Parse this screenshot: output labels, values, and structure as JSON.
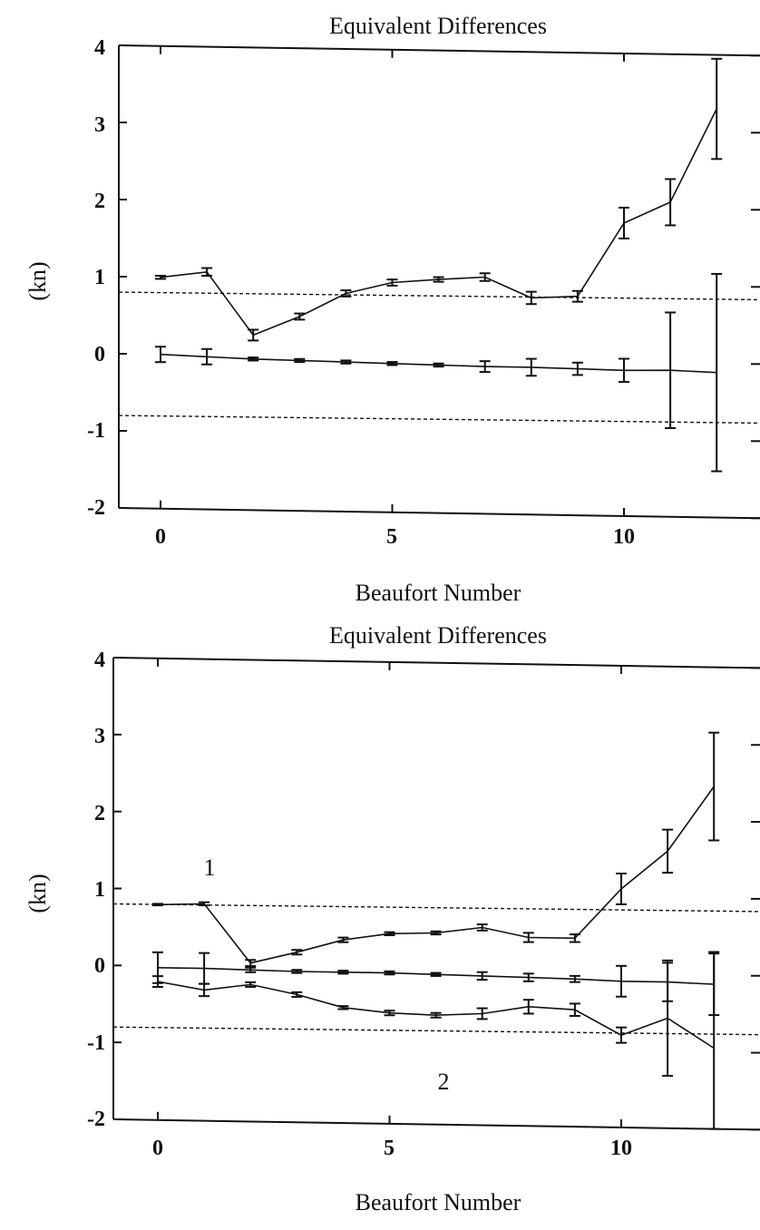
{
  "charts": [
    {
      "title": "Equivalent Differences",
      "xlabel": "Beaufort Number",
      "ylabel": "(kn)",
      "yticks": [
        "4",
        "3",
        "2",
        "1",
        "0",
        "-1",
        "-2"
      ],
      "xticks": [
        "0",
        "5",
        "10"
      ]
    },
    {
      "title": "Equivalent Differences",
      "xlabel": "Beaufort Number",
      "ylabel": "(kn)",
      "yticks": [
        "4",
        "3",
        "2",
        "1",
        "0",
        "-1",
        "-2"
      ],
      "xticks": [
        "0",
        "5",
        "10"
      ],
      "annotations": [
        "1",
        "2"
      ]
    }
  ],
  "chart_data": [
    {
      "type": "line",
      "title": "Equivalent Differences",
      "xlabel": "Beaufort Number",
      "ylabel": "(kn)",
      "xlim": [
        -1,
        13
      ],
      "ylim": [
        -2,
        4
      ],
      "x": [
        0,
        1,
        2,
        3,
        4,
        5,
        6,
        7,
        8,
        9,
        10,
        11,
        12
      ],
      "series": [
        {
          "values": [
            1.0,
            1.08,
            0.27,
            0.52,
            0.83,
            0.98,
            1.03,
            1.07,
            0.81,
            0.84,
            1.8,
            2.08,
            3.3
          ],
          "errors": [
            0.02,
            0.05,
            0.07,
            0.04,
            0.04,
            0.04,
            0.03,
            0.05,
            0.08,
            0.07,
            0.2,
            0.3,
            0.65
          ]
        },
        {
          "values": [
            0.0,
            -0.02,
            -0.04,
            -0.05,
            -0.06,
            -0.07,
            -0.08,
            -0.09,
            -0.09,
            -0.1,
            -0.11,
            -0.1,
            -0.12
          ],
          "errors": [
            0.1,
            0.1,
            0.02,
            0.02,
            0.02,
            0.02,
            0.02,
            0.07,
            0.11,
            0.08,
            0.15,
            0.75,
            1.28
          ]
        }
      ],
      "reference_lines": [
        {
          "style": "dashed",
          "from": [
            -1,
            0.8
          ],
          "to": [
            13,
            0.7
          ]
        },
        {
          "style": "dashed",
          "from": [
            -1,
            -0.8
          ],
          "to": [
            13,
            -0.9
          ]
        }
      ]
    },
    {
      "type": "line",
      "title": "Equivalent Differences",
      "xlabel": "Beaufort Number",
      "ylabel": "(kn)",
      "xlim": [
        -1,
        13
      ],
      "ylim": [
        -2,
        4
      ],
      "x": [
        0,
        1,
        2,
        3,
        4,
        5,
        6,
        7,
        8,
        9,
        10,
        11,
        12
      ],
      "series": [
        {
          "name": "1",
          "values": [
            0.8,
            0.82,
            0.06,
            0.21,
            0.38,
            0.47,
            0.49,
            0.57,
            0.45,
            0.45,
            1.1,
            1.6,
            2.45
          ],
          "errors": [
            0.01,
            0.02,
            0.04,
            0.03,
            0.03,
            0.02,
            0.02,
            0.04,
            0.06,
            0.05,
            0.2,
            0.28,
            0.7
          ]
        },
        {
          "values": [
            -0.02,
            -0.02,
            -0.03,
            -0.04,
            -0.04,
            -0.04,
            -0.05,
            -0.06,
            -0.07,
            -0.08,
            -0.1,
            -0.1,
            -0.12
          ],
          "errors": [
            0.2,
            0.2,
            0.03,
            0.02,
            0.02,
            0.02,
            0.02,
            0.05,
            0.05,
            0.04,
            0.2,
            0.25,
            0.4
          ]
        },
        {
          "name": "2",
          "values": [
            -0.2,
            -0.3,
            -0.22,
            -0.34,
            -0.5,
            -0.56,
            -0.58,
            -0.55,
            -0.45,
            -0.48,
            -0.8,
            -0.57,
            -0.95
          ],
          "errors": [
            0.07,
            0.08,
            0.03,
            0.03,
            0.02,
            0.03,
            0.03,
            0.07,
            0.09,
            0.08,
            0.1,
            0.75,
            1.25
          ]
        }
      ],
      "reference_lines": [
        {
          "style": "dashed",
          "from": [
            -1,
            0.8
          ],
          "to": [
            13,
            0.7
          ]
        },
        {
          "style": "dashed",
          "from": [
            -1,
            -0.8
          ],
          "to": [
            13,
            -0.9
          ]
        }
      ]
    }
  ]
}
